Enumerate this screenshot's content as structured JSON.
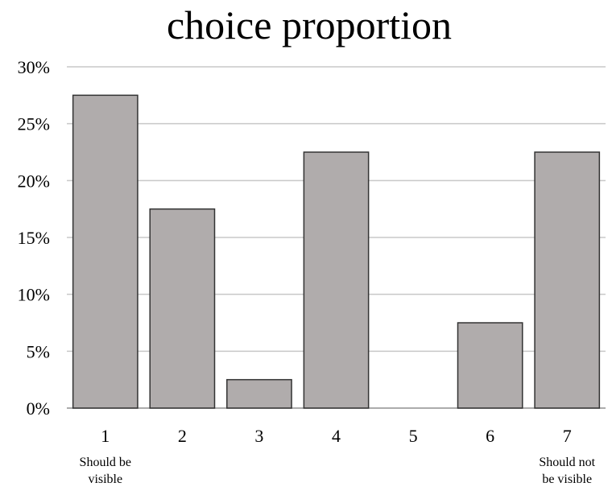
{
  "chart_data": {
    "type": "bar",
    "title": "choice proportion",
    "xlabel": "",
    "ylabel": "",
    "categories": [
      "1",
      "2",
      "3",
      "4",
      "5",
      "6",
      "7"
    ],
    "values": [
      27.5,
      17.5,
      2.5,
      22.5,
      0,
      7.5,
      22.5
    ],
    "ylim": [
      0,
      30
    ],
    "yticks": [
      "0%",
      "5%",
      "10%",
      "15%",
      "20%",
      "25%",
      "30%"
    ],
    "grid": true,
    "legend": "none",
    "bar_color": "#b0acac",
    "bar_edge_color": "#333333",
    "grid_color": "#c8c8c8",
    "annotations": [
      {
        "category": "1",
        "lines": [
          "Should be",
          "visible"
        ]
      },
      {
        "category": "7",
        "lines": [
          "Should not",
          "be visible"
        ]
      }
    ]
  }
}
